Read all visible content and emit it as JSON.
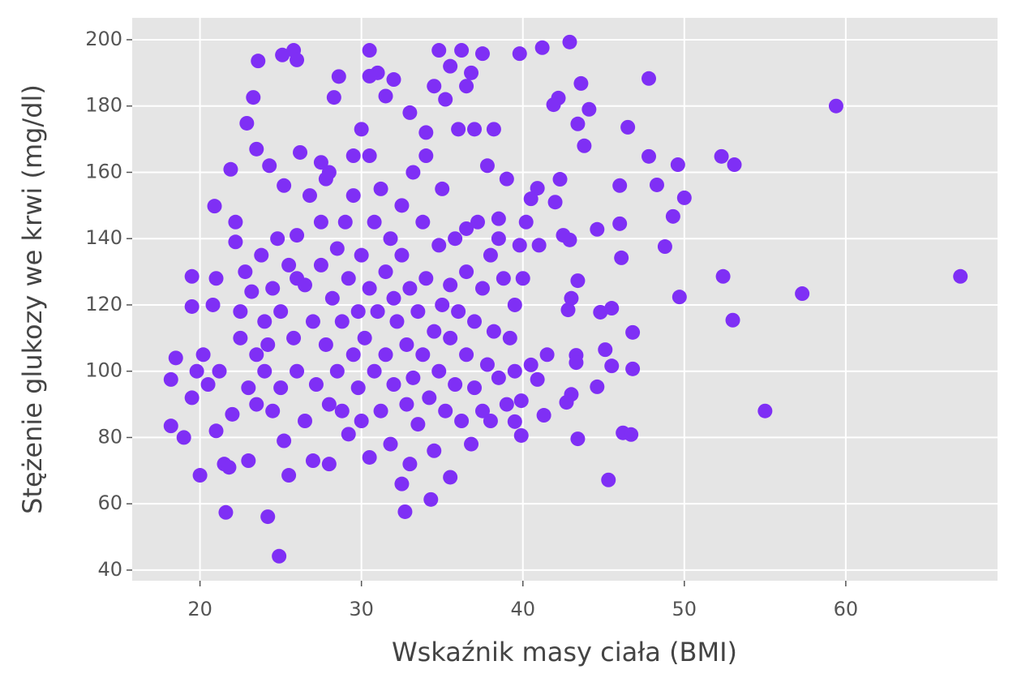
{
  "chart_data": {
    "type": "scatter",
    "x_label": "Wskaźnik masy ciała (BMI)",
    "y_label": "Stężenie glukozy we krwi (mg/dl)",
    "color": "#7f2ff5",
    "grid": true,
    "xlim": [
      15.8,
      69.4
    ],
    "ylim": [
      36.8,
      206.6
    ],
    "xticks": [
      20,
      30,
      40,
      50,
      60
    ],
    "yticks": [
      40,
      60,
      80,
      100,
      120,
      140,
      160,
      180,
      200
    ],
    "x": [
      59.4,
      67.1,
      57.3,
      55.0,
      53.0,
      52.4,
      53.1,
      52.3,
      49.7,
      50.0,
      49.6,
      49.3,
      48.8,
      48.3,
      47.8,
      47.8,
      42.9,
      41.2,
      39.8,
      45.3,
      24.9,
      24.2,
      21.6,
      32.7,
      34.3,
      25.5,
      20.0,
      18.2,
      18.2,
      19.5,
      19.5,
      20.9,
      21.9,
      22.9,
      23.3,
      23.6,
      25.1,
      25.8,
      26.0,
      28.6,
      28.3,
      30.5,
      36.2,
      37.5,
      34.8,
      43.4,
      43.6,
      46.5,
      46.0,
      46.0,
      46.1,
      46.8,
      46.8,
      46.2,
      46.7,
      43.4,
      44.6,
      45.1,
      45.5,
      44.8,
      45.5,
      43.8,
      44.1,
      42.2,
      41.9,
      40.9,
      42.3,
      41.3,
      42.7,
      39.9,
      39.5,
      39.9,
      40.5,
      40.9,
      42.8,
      43.3,
      43.3,
      43.4,
      42.9,
      44.6,
      18.5,
      19.0,
      19.5,
      19.8,
      20.2,
      20.5,
      21.0,
      21.0,
      21.2,
      20.8,
      21.5,
      21.8,
      22.0,
      22.2,
      22.2,
      22.5,
      22.5,
      22.8,
      23.0,
      23.0,
      23.2,
      23.5,
      23.5,
      23.8,
      24.0,
      24.0,
      24.2,
      24.5,
      24.5,
      24.8,
      25.0,
      25.0,
      25.2,
      25.2,
      25.5,
      25.8,
      26.0,
      26.0,
      26.2,
      26.5,
      26.5,
      26.8,
      27.0,
      27.0,
      27.2,
      27.5,
      27.5,
      27.8,
      27.8,
      28.0,
      28.0,
      28.2,
      28.5,
      28.5,
      28.8,
      28.8,
      29.0,
      29.2,
      29.2,
      29.5,
      29.5,
      29.8,
      29.8,
      30.0,
      30.0,
      30.0,
      30.2,
      30.5,
      30.5,
      30.5,
      30.8,
      30.8,
      31.0,
      31.0,
      31.2,
      31.2,
      31.5,
      31.5,
      31.8,
      31.8,
      32.0,
      32.0,
      32.0,
      32.2,
      32.5,
      32.5,
      32.5,
      32.8,
      32.8,
      33.0,
      33.0,
      33.0,
      33.2,
      33.2,
      33.5,
      33.5,
      33.8,
      33.8,
      34.0,
      34.0,
      34.2,
      34.5,
      34.5,
      34.5,
      34.8,
      34.8,
      35.0,
      35.0,
      35.2,
      35.2,
      35.5,
      35.5,
      35.5,
      35.8,
      35.8,
      36.0,
      36.0,
      36.2,
      36.5,
      36.5,
      36.8,
      36.8,
      37.0,
      37.0,
      37.2,
      37.5,
      37.5,
      37.8,
      37.8,
      38.0,
      38.0,
      38.2,
      38.5,
      38.5,
      38.8,
      39.0,
      39.0,
      39.2,
      39.5,
      39.5,
      39.8,
      40.0,
      40.2,
      40.5,
      41.0,
      41.5,
      42.0,
      42.5,
      43.0,
      43.0,
      37.0,
      38.2,
      36.5,
      35.5,
      34.0,
      31.5,
      30.5,
      29.5,
      28.0,
      27.5,
      26.0,
      23.5,
      24.3,
      36.5,
      38.5
    ],
    "values": [
      180,
      128.6,
      123.4,
      88,
      115.4,
      128.6,
      162.3,
      164.8,
      122.4,
      152.3,
      162.3,
      146.7,
      137.6,
      156.2,
      164.8,
      188.3,
      199.3,
      197.6,
      195.8,
      67.2,
      44.2,
      56.1,
      57.4,
      57.6,
      61.3,
      68.6,
      68.6,
      83.5,
      97.5,
      128.6,
      119.5,
      149.8,
      160.9,
      174.8,
      182.6,
      193.6,
      195.4,
      196.8,
      193.9,
      188.9,
      182.6,
      196.8,
      196.8,
      195.8,
      196.8,
      174.6,
      186.8,
      173.6,
      156.0,
      144.5,
      134.2,
      111.7,
      100.7,
      81.4,
      80.9,
      79.6,
      95.3,
      106.5,
      101.6,
      117.8,
      119.0,
      168.0,
      179.0,
      182.4,
      180.4,
      155.2,
      157.9,
      86.7,
      90.6,
      80.6,
      84.8,
      91.1,
      101.9,
      97.5,
      118.5,
      104.8,
      102.6,
      127.3,
      139.6,
      142.8,
      104,
      80,
      92,
      100,
      105,
      96,
      82,
      128,
      100,
      120,
      72,
      71,
      87,
      145,
      139,
      118,
      110,
      130,
      73,
      95,
      124,
      105,
      90,
      135,
      115,
      100,
      108,
      88,
      125,
      140,
      95,
      118,
      79,
      156,
      132,
      110,
      141,
      100,
      166,
      126,
      85,
      153,
      73,
      115,
      96,
      132,
      145,
      158,
      108,
      90,
      72,
      122,
      137,
      100,
      88,
      115,
      145,
      81,
      128,
      105,
      153,
      95,
      118,
      173,
      85,
      135,
      110,
      125,
      165,
      74,
      100,
      145,
      190,
      118,
      88,
      155,
      130,
      105,
      78,
      140,
      96,
      122,
      188,
      115,
      66,
      150,
      135,
      90,
      108,
      125,
      178,
      72,
      98,
      160,
      118,
      84,
      145,
      105,
      172,
      128,
      92,
      112,
      186,
      76,
      138,
      100,
      120,
      155,
      88,
      182,
      110,
      126,
      68,
      96,
      140,
      118,
      173,
      85,
      105,
      130,
      78,
      190,
      115,
      95,
      145,
      88,
      125,
      102,
      162,
      135,
      85,
      112,
      98,
      146,
      128,
      90,
      158,
      110,
      120,
      100,
      138,
      128,
      145,
      152,
      138,
      105,
      151,
      141,
      122,
      93,
      173,
      173,
      186,
      192,
      165,
      183,
      189,
      165,
      160,
      163,
      128,
      167,
      162,
      143,
      140
    ]
  }
}
